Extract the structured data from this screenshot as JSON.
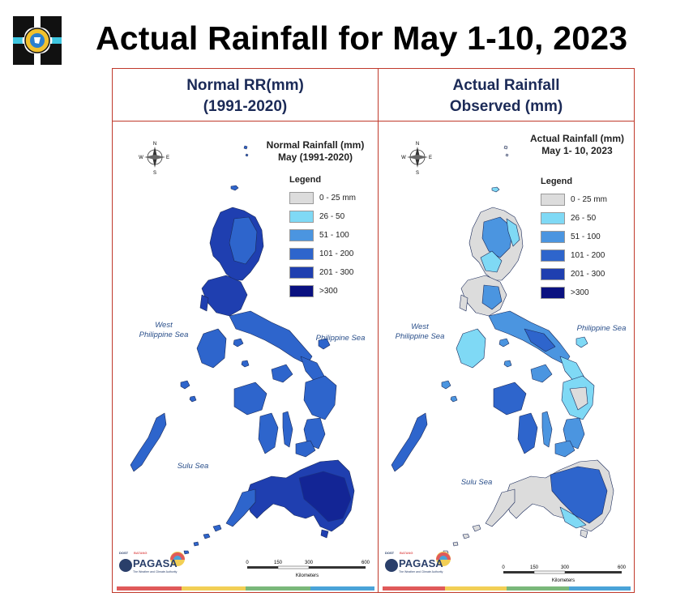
{
  "header": {
    "title": "Actual Rainfall for May 1-10, 2023"
  },
  "panels": [
    {
      "heading_line1": "Normal RR(mm)",
      "heading_line2": "(1991-2020)",
      "map_title_line1": "Normal Rainfall (mm)",
      "map_title_line2": "May (1991-2020)"
    },
    {
      "heading_line1": "Actual Rainfall",
      "heading_line2": "Observed (mm)",
      "map_title_line1": "Actual Rainfall (mm)",
      "map_title_line2": "May 1- 10, 2023"
    }
  ],
  "legend": {
    "heading": "Legend",
    "classes": [
      {
        "label": "0 - 25 mm",
        "color": "#dcdcdc"
      },
      {
        "label": "26 - 50",
        "color": "#7fd9f5"
      },
      {
        "label": "51 - 100",
        "color": "#4b95e0"
      },
      {
        "label": "101 - 200",
        "color": "#2e65cc"
      },
      {
        "label": "201 - 300",
        "color": "#1f3fb0"
      },
      {
        "label": ">300",
        "color": "#0a1180"
      }
    ]
  },
  "seas": {
    "west_line1": "West",
    "west_line2": "Philippine Sea",
    "east": "Philippine Sea",
    "sulu": "Sulu Sea"
  },
  "compass": {
    "n": "N",
    "s": "S",
    "e": "E",
    "w": "W"
  },
  "scale": {
    "ticks": [
      "0",
      "150",
      "300",
      "600"
    ],
    "unit": "Kilometers"
  },
  "branding": {
    "dost": "DOST",
    "batang": "BATANG",
    "name": "PAGASA",
    "tagline": "The Weather and Climate Authority"
  },
  "colors": {
    "frame": "#c0392b",
    "heading": "#1b2a57",
    "stripe": [
      "#e05a5a",
      "#f2cf55",
      "#7ab87a",
      "#4aa3d8"
    ]
  }
}
